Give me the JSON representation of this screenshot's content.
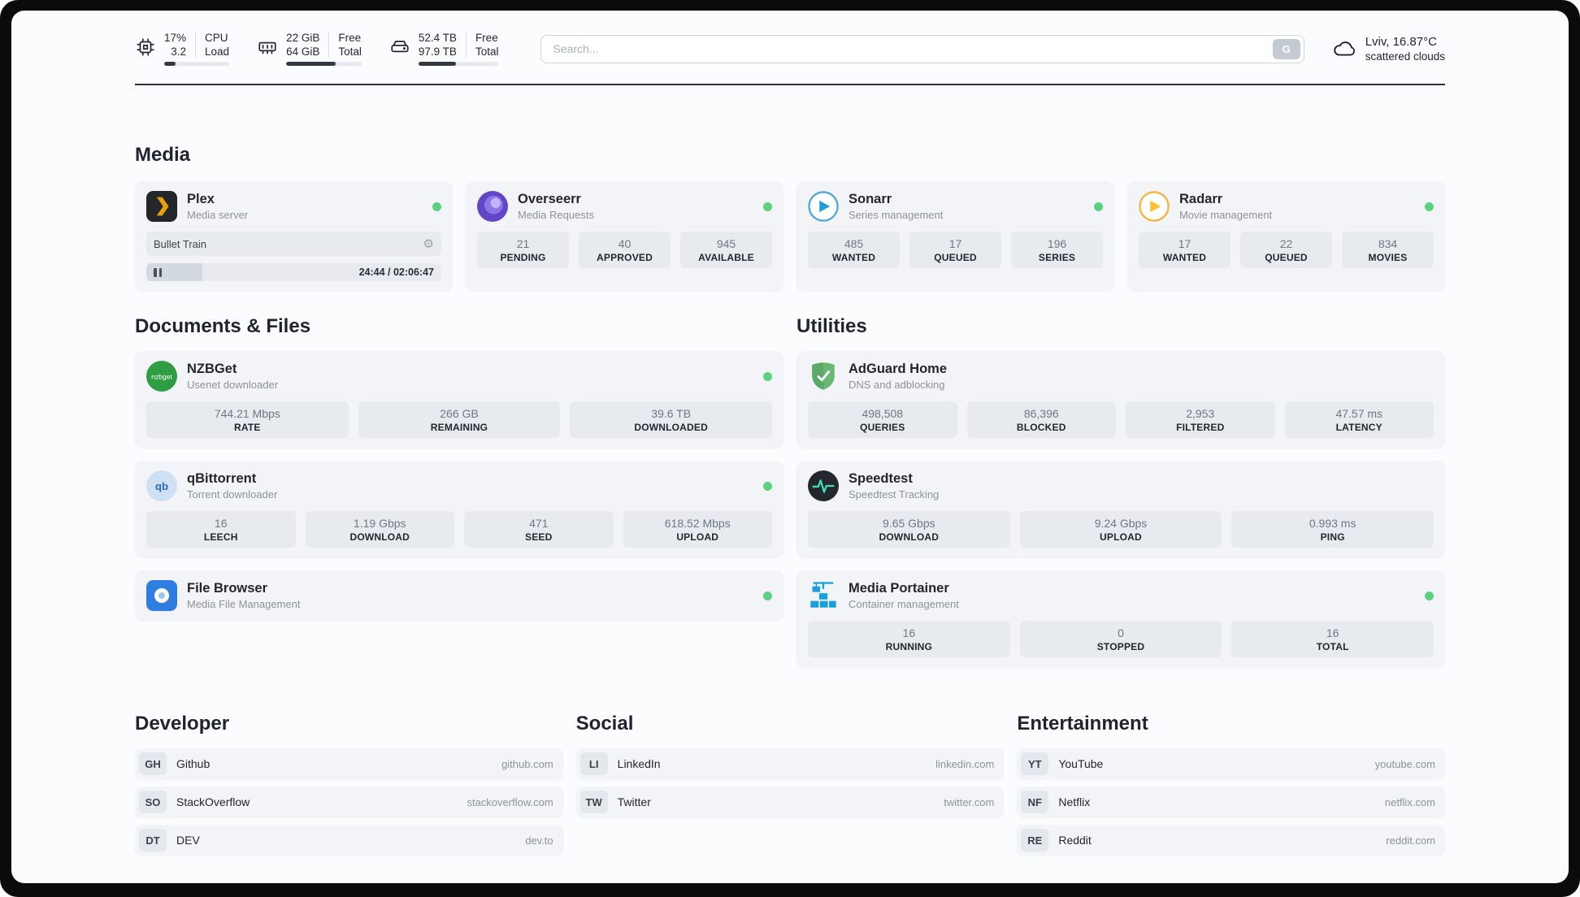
{
  "colors": {
    "status_online": "#5bd37e",
    "divider": "#2b2f33"
  },
  "header": {
    "cpu": {
      "values": [
        "17%",
        "3.2"
      ],
      "labels": [
        "CPU",
        "Load"
      ],
      "progress": 17
    },
    "ram": {
      "values": [
        "22 GiB",
        "64 GiB"
      ],
      "labels": [
        "Free",
        "Total"
      ],
      "progress": 66
    },
    "disk": {
      "values": [
        "52.4 TB",
        "97.9 TB"
      ],
      "labels": [
        "Free",
        "Total"
      ],
      "progress": 47
    },
    "search": {
      "placeholder": "Search...",
      "button_label": "G"
    },
    "weather": {
      "location": "Lviv, 16.87°C",
      "condition": "scattered clouds"
    }
  },
  "media": {
    "title": "Media",
    "plex": {
      "name": "Plex",
      "description": "Media server",
      "status": "online",
      "now_playing": "Bullet Train",
      "time_display": "24:44 / 02:06:47",
      "progress": 19
    },
    "overseerr": {
      "name": "Overseerr",
      "description": "Media Requests",
      "status": "online",
      "stats": [
        {
          "value": "21",
          "label": "PENDING"
        },
        {
          "value": "40",
          "label": "APPROVED"
        },
        {
          "value": "945",
          "label": "AVAILABLE"
        }
      ]
    },
    "sonarr": {
      "name": "Sonarr",
      "description": "Series management",
      "status": "online",
      "stats": [
        {
          "value": "485",
          "label": "WANTED"
        },
        {
          "value": "17",
          "label": "QUEUED"
        },
        {
          "value": "196",
          "label": "SERIES"
        }
      ]
    },
    "radarr": {
      "name": "Radarr",
      "description": "Movie management",
      "status": "online",
      "stats": [
        {
          "value": "17",
          "label": "WANTED"
        },
        {
          "value": "22",
          "label": "QUEUED"
        },
        {
          "value": "834",
          "label": "MOVIES"
        }
      ]
    }
  },
  "documents": {
    "title": "Documents & Files",
    "nzbget": {
      "name": "NZBGet",
      "description": "Usenet downloader",
      "status": "online",
      "stats": [
        {
          "value": "744.21 Mbps",
          "label": "RATE"
        },
        {
          "value": "266 GB",
          "label": "REMAINING"
        },
        {
          "value": "39.6 TB",
          "label": "DOWNLOADED"
        }
      ]
    },
    "qbittorrent": {
      "name": "qBittorrent",
      "description": "Torrent downloader",
      "status": "online",
      "stats": [
        {
          "value": "16",
          "label": "LEECH"
        },
        {
          "value": "1.19 Gbps",
          "label": "DOWNLOAD"
        },
        {
          "value": "471",
          "label": "SEED"
        },
        {
          "value": "618.52 Mbps",
          "label": "UPLOAD"
        }
      ]
    },
    "filebrowser": {
      "name": "File Browser",
      "description": "Media File Management",
      "status": "online"
    }
  },
  "utilities": {
    "title": "Utilities",
    "adguard": {
      "name": "AdGuard Home",
      "description": "DNS and adblocking",
      "stats": [
        {
          "value": "498,508",
          "label": "QUERIES"
        },
        {
          "value": "86,396",
          "label": "BLOCKED"
        },
        {
          "value": "2,953",
          "label": "FILTERED"
        },
        {
          "value": "47.57 ms",
          "label": "LATENCY"
        }
      ]
    },
    "speedtest": {
      "name": "Speedtest",
      "description": "Speedtest Tracking",
      "stats": [
        {
          "value": "9.65 Gbps",
          "label": "DOWNLOAD"
        },
        {
          "value": "9.24 Gbps",
          "label": "UPLOAD"
        },
        {
          "value": "0.993 ms",
          "label": "PING"
        }
      ]
    },
    "portainer": {
      "name": "Media Portainer",
      "description": "Container management",
      "status": "online",
      "stats": [
        {
          "value": "16",
          "label": "RUNNING"
        },
        {
          "value": "0",
          "label": "STOPPED"
        },
        {
          "value": "16",
          "label": "TOTAL"
        }
      ]
    }
  },
  "bookmarks": {
    "developer": {
      "title": "Developer",
      "items": [
        {
          "abbr": "GH",
          "name": "Github",
          "domain": "github.com"
        },
        {
          "abbr": "SO",
          "name": "StackOverflow",
          "domain": "stackoverflow.com"
        },
        {
          "abbr": "DT",
          "name": "DEV",
          "domain": "dev.to"
        }
      ]
    },
    "social": {
      "title": "Social",
      "items": [
        {
          "abbr": "LI",
          "name": "LinkedIn",
          "domain": "linkedin.com"
        },
        {
          "abbr": "TW",
          "name": "Twitter",
          "domain": "twitter.com"
        }
      ]
    },
    "entertainment": {
      "title": "Entertainment",
      "items": [
        {
          "abbr": "YT",
          "name": "YouTube",
          "domain": "youtube.com"
        },
        {
          "abbr": "NF",
          "name": "Netflix",
          "domain": "netflix.com"
        },
        {
          "abbr": "RE",
          "name": "Reddit",
          "domain": "reddit.com"
        }
      ]
    }
  },
  "icon_text": {
    "nzbget": "nzbget",
    "qbittorrent": "qb"
  }
}
